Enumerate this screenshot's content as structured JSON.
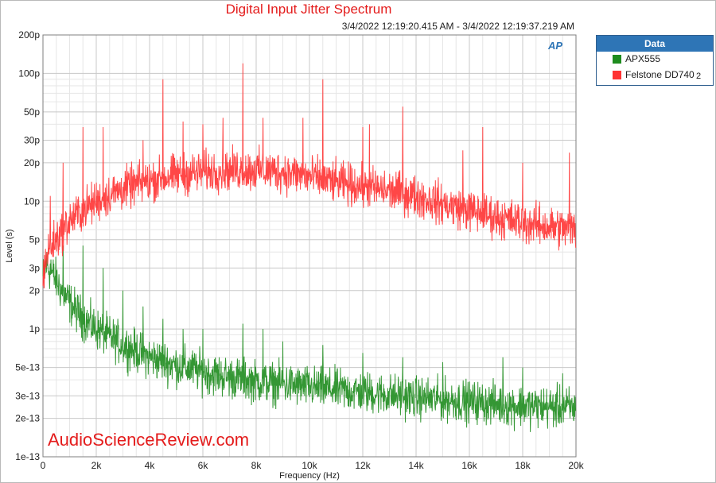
{
  "chart_data": {
    "type": "line",
    "title": "Digital Input Jitter Spectrum",
    "subtitle": "3/4/2022 12:19:20.415 AM - 3/4/2022 12:19:37.219 AM",
    "xlabel": "Frequency (Hz)",
    "ylabel": "Level (s)",
    "xlim": [
      0,
      20000
    ],
    "ylim": [
      1e-13,
      2e-10
    ],
    "yscale": "log",
    "grid": true,
    "x_ticks": [
      {
        "value": 0,
        "label": "0"
      },
      {
        "value": 2000,
        "label": "2k"
      },
      {
        "value": 4000,
        "label": "4k"
      },
      {
        "value": 6000,
        "label": "6k"
      },
      {
        "value": 8000,
        "label": "8k"
      },
      {
        "value": 10000,
        "label": "10k"
      },
      {
        "value": 12000,
        "label": "12k"
      },
      {
        "value": 14000,
        "label": "14k"
      },
      {
        "value": 16000,
        "label": "16k"
      },
      {
        "value": 18000,
        "label": "18k"
      },
      {
        "value": 20000,
        "label": "20k"
      }
    ],
    "y_ticks": [
      {
        "value": 2e-10,
        "label": "200p"
      },
      {
        "value": 1e-10,
        "label": "100p"
      },
      {
        "value": 5e-11,
        "label": "50p"
      },
      {
        "value": 3e-11,
        "label": "30p"
      },
      {
        "value": 2e-11,
        "label": "20p"
      },
      {
        "value": 1e-11,
        "label": "10p"
      },
      {
        "value": 5e-12,
        "label": "5p"
      },
      {
        "value": 3e-12,
        "label": "3p"
      },
      {
        "value": 2e-12,
        "label": "2p"
      },
      {
        "value": 1e-12,
        "label": "1p"
      },
      {
        "value": 5e-13,
        "label": "5e-13"
      },
      {
        "value": 3e-13,
        "label": "3e-13"
      },
      {
        "value": 2e-13,
        "label": "2e-13"
      },
      {
        "value": 1e-13,
        "label": "1e-13"
      }
    ],
    "legend_position": "right",
    "series": [
      {
        "name": "APX555",
        "color": "#1e8c1e",
        "x": [
          0,
          100,
          200,
          300,
          500,
          700,
          1000,
          1500,
          2000,
          3000,
          4000,
          5000,
          6000,
          7000,
          8000,
          10000,
          12000,
          14000,
          16000,
          18000,
          20000
        ],
        "y": [
          2.5e-12,
          3.2e-12,
          3e-12,
          2.8e-12,
          2.4e-12,
          2e-12,
          1.6e-12,
          1.2e-12,
          1e-12,
          7.5e-13,
          6e-13,
          5.2e-13,
          4.6e-13,
          4.2e-13,
          3.9e-13,
          3.5e-13,
          3.2e-13,
          2.9e-13,
          2.7e-13,
          2.5e-13,
          2.4e-13
        ],
        "spikes": [
          {
            "x": 300,
            "y": 3.5e-12
          },
          {
            "x": 750,
            "y": 4.5e-12
          },
          {
            "x": 1500,
            "y": 4.5e-12
          },
          {
            "x": 2250,
            "y": 3e-12
          },
          {
            "x": 3000,
            "y": 2e-12
          },
          {
            "x": 3750,
            "y": 1.5e-12
          },
          {
            "x": 4500,
            "y": 1.2e-12
          },
          {
            "x": 5250,
            "y": 1e-12
          },
          {
            "x": 6000,
            "y": 1e-12
          },
          {
            "x": 7500,
            "y": 1.1e-12
          },
          {
            "x": 8250,
            "y": 1e-12
          },
          {
            "x": 9000,
            "y": 8e-13
          },
          {
            "x": 10500,
            "y": 7.5e-13
          },
          {
            "x": 12000,
            "y": 6.5e-13
          },
          {
            "x": 13500,
            "y": 6e-13
          },
          {
            "x": 15000,
            "y": 5.5e-13
          },
          {
            "x": 17250,
            "y": 6e-13
          },
          {
            "x": 18000,
            "y": 5e-13
          },
          {
            "x": 19500,
            "y": 4.5e-13
          }
        ]
      },
      {
        "name": "Felstone DD740",
        "channel": "2",
        "color": "#ff3333",
        "x": [
          0,
          100,
          200,
          300,
          500,
          700,
          1000,
          1500,
          2000,
          3000,
          4000,
          5000,
          6000,
          7000,
          8000,
          9000,
          10000,
          11000,
          12000,
          13000,
          14000,
          15000,
          16000,
          17000,
          18000,
          19000,
          20000
        ],
        "y": [
          2.5e-12,
          3.5e-12,
          4e-12,
          4.5e-12,
          5e-12,
          5.8e-12,
          7e-12,
          8.5e-12,
          1e-11,
          1.25e-11,
          1.45e-11,
          1.6e-11,
          1.7e-11,
          1.75e-11,
          1.75e-11,
          1.7e-11,
          1.55e-11,
          1.4e-11,
          1.3e-11,
          1.2e-11,
          1.1e-11,
          9.5e-12,
          8.5e-12,
          7.5e-12,
          6.8e-12,
          6.3e-12,
          6e-12
        ],
        "spikes": [
          {
            "x": 280,
            "y": 1.1e-11
          },
          {
            "x": 750,
            "y": 2e-11
          },
          {
            "x": 1500,
            "y": 3.8e-11
          },
          {
            "x": 2250,
            "y": 3.8e-11
          },
          {
            "x": 3750,
            "y": 3e-11
          },
          {
            "x": 4500,
            "y": 9e-11
          },
          {
            "x": 5250,
            "y": 4.2e-11
          },
          {
            "x": 6000,
            "y": 4e-11
          },
          {
            "x": 6750,
            "y": 4.5e-11
          },
          {
            "x": 7500,
            "y": 1.2e-10
          },
          {
            "x": 8250,
            "y": 4.5e-11
          },
          {
            "x": 9750,
            "y": 4.5e-11
          },
          {
            "x": 10500,
            "y": 9e-11
          },
          {
            "x": 12000,
            "y": 3.8e-11
          },
          {
            "x": 12250,
            "y": 4e-11
          },
          {
            "x": 13500,
            "y": 5.5e-11
          },
          {
            "x": 15750,
            "y": 2.5e-11
          },
          {
            "x": 16500,
            "y": 3.8e-11
          },
          {
            "x": 18000,
            "y": 2e-11
          },
          {
            "x": 19750,
            "y": 2.4e-11
          }
        ]
      }
    ]
  },
  "legend": {
    "header": "Data",
    "items": [
      {
        "label": "APX555",
        "color": "#1e8c1e",
        "channel": ""
      },
      {
        "label": "Felstone DD740",
        "color": "#ff3333",
        "channel": "2"
      }
    ]
  },
  "logo": {
    "text": "AP"
  },
  "watermark": "AudioScienceReview.com"
}
